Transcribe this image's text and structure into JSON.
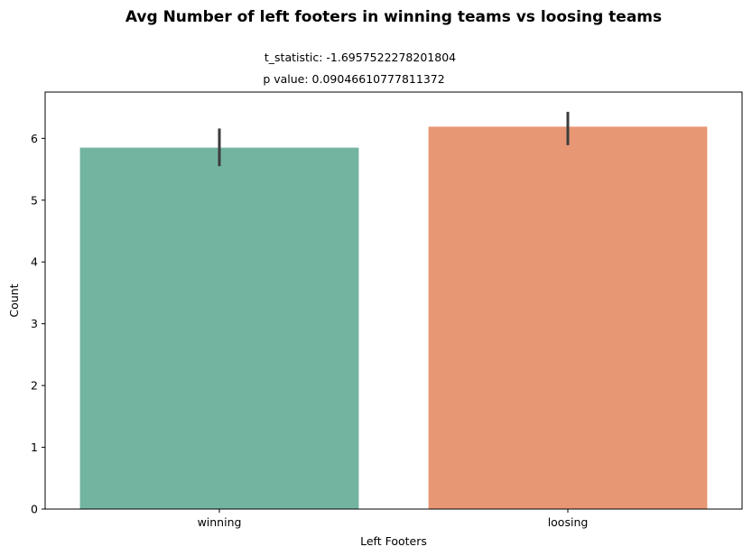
{
  "chart_data": {
    "type": "bar",
    "title": "Avg Number of left footers in winning teams vs loosing teams",
    "annotations": [
      "t_statistic: -1.6957522278201804",
      "p value: 0.09046610777811372"
    ],
    "xlabel": "Left Footers",
    "ylabel": "Count",
    "categories": [
      "winning",
      "loosing"
    ],
    "values": [
      5.85,
      6.19
    ],
    "error_low": [
      5.55,
      5.89
    ],
    "error_high": [
      6.16,
      6.43
    ],
    "colors": [
      "#73b4a1",
      "#e89774"
    ],
    "ylim": [
      0,
      6.75
    ],
    "yticks": [
      0,
      1,
      2,
      3,
      4,
      5,
      6
    ],
    "grid": false,
    "legend": "none"
  }
}
